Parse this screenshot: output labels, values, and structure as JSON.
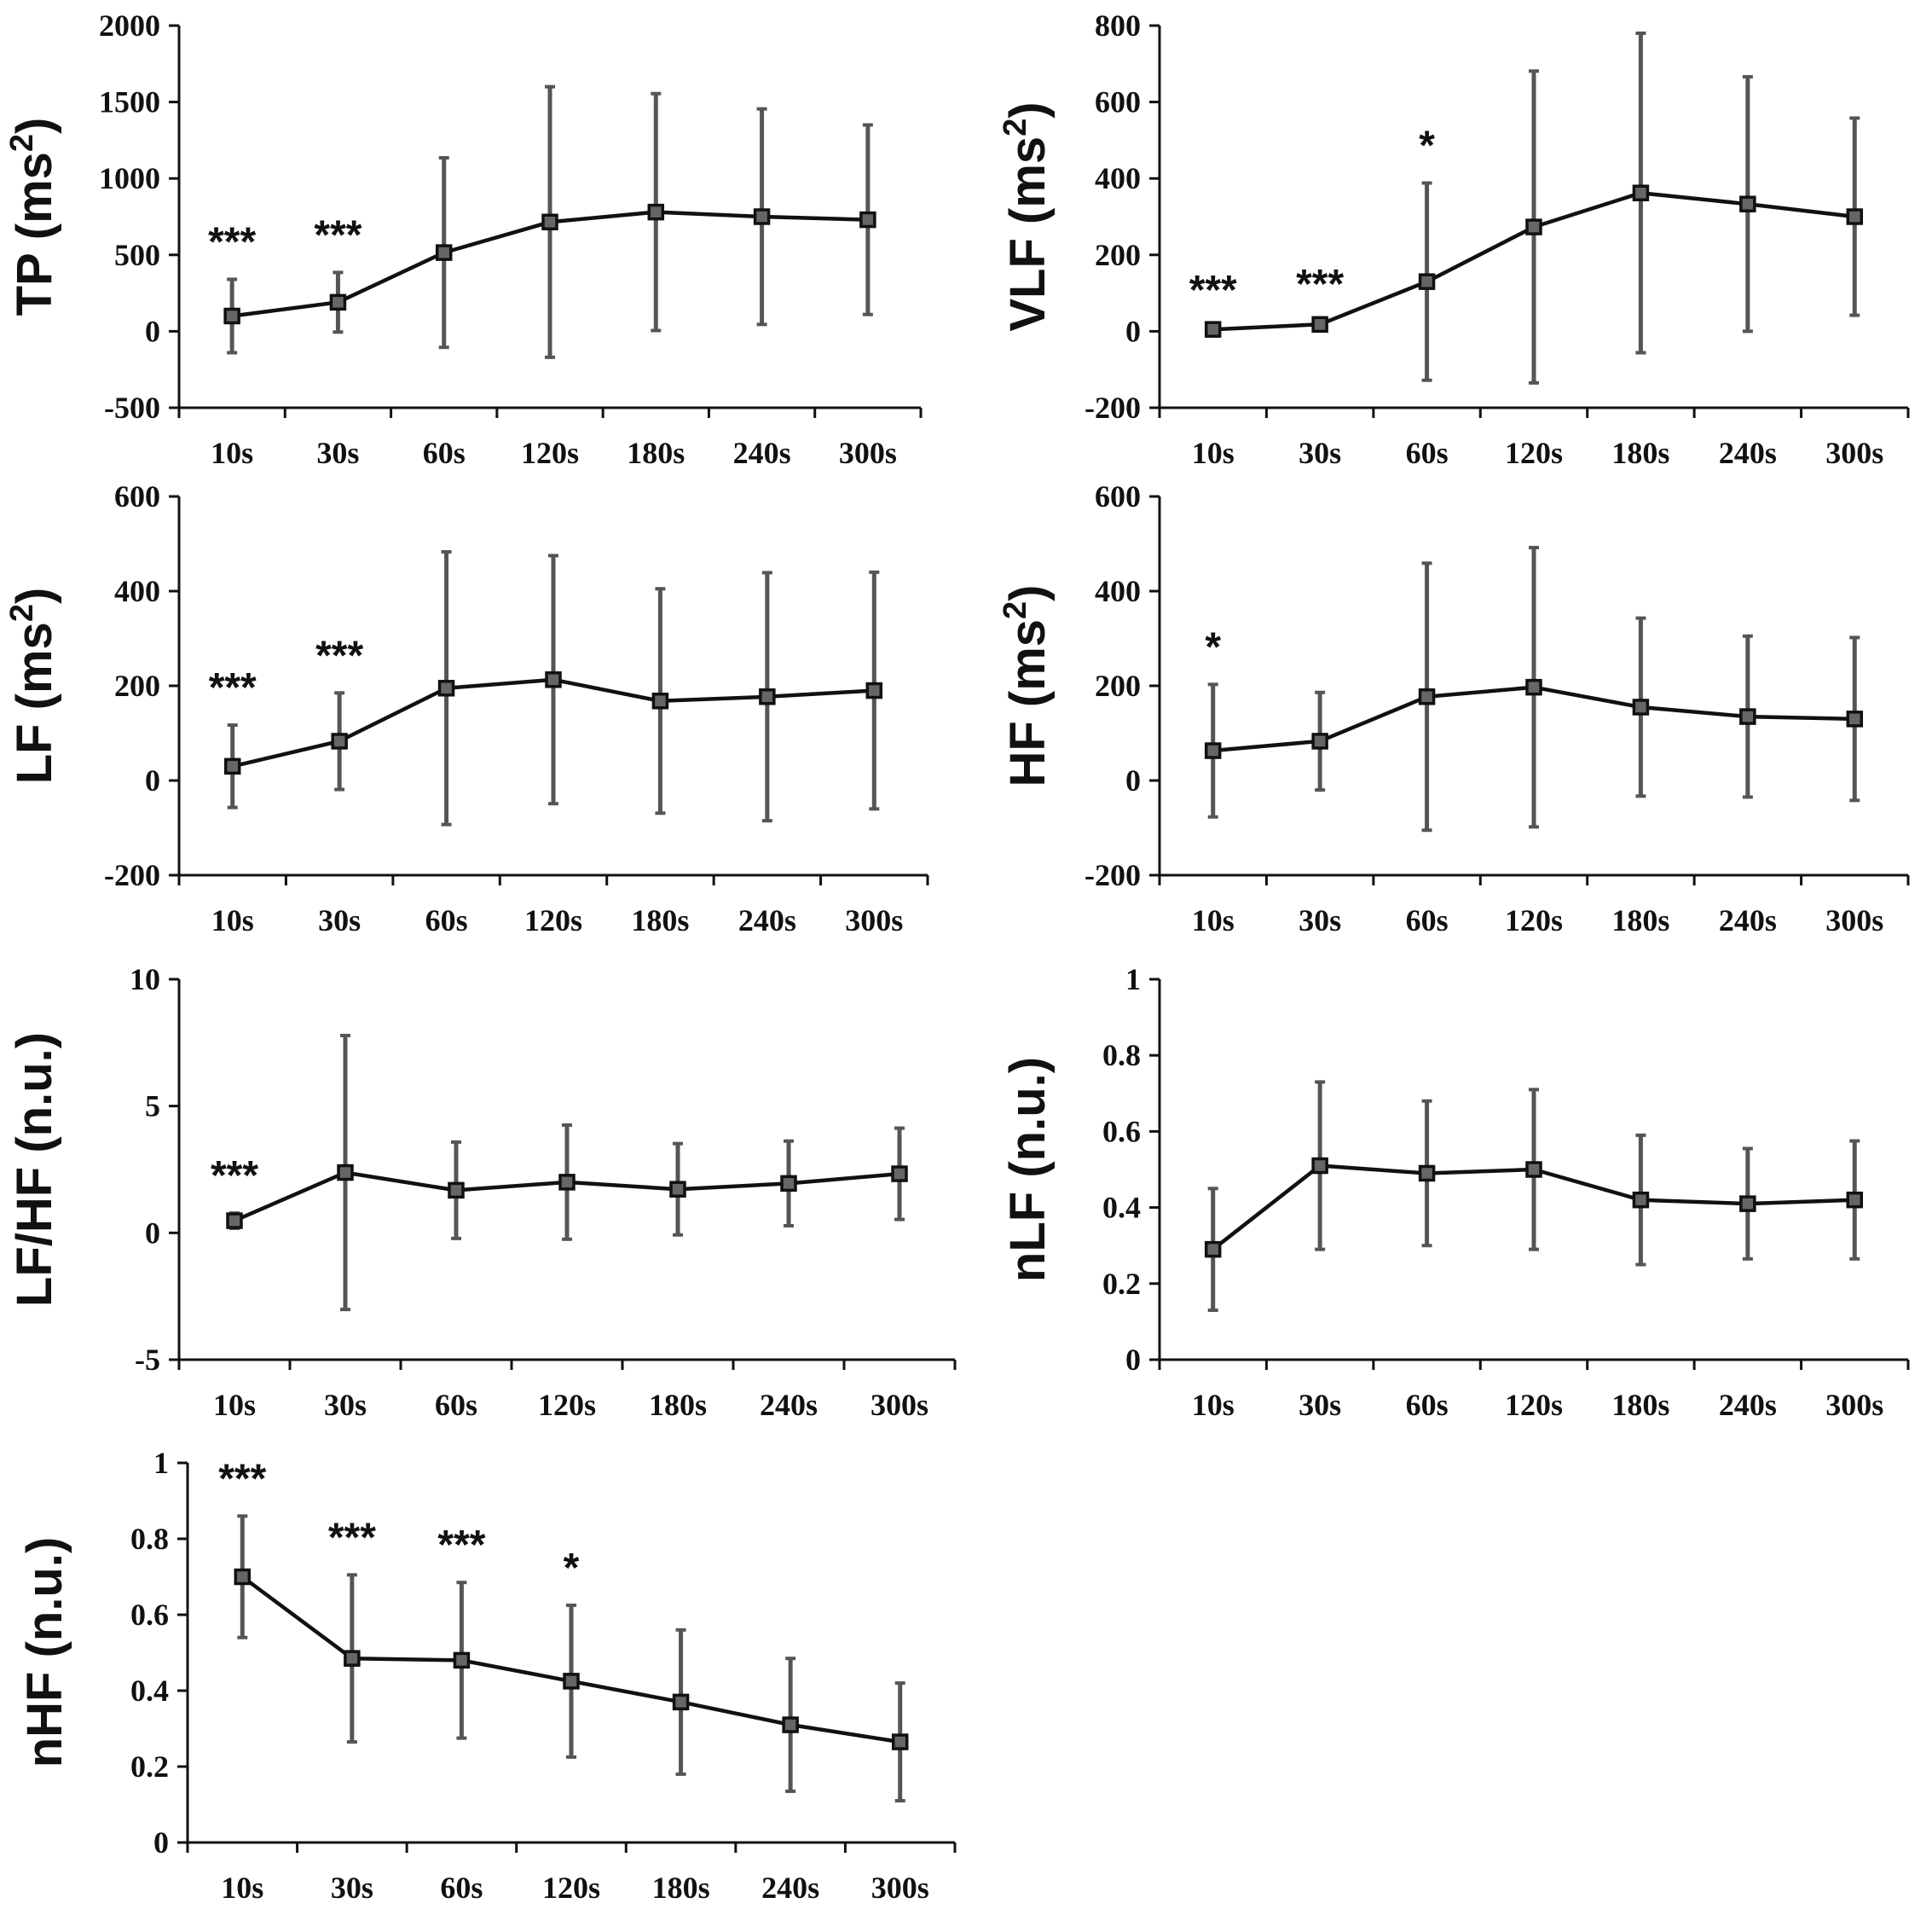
{
  "colors": {
    "line": "#111111",
    "errorbar": "#555555",
    "marker_fill": "#666666",
    "axis": "#111111"
  },
  "chart_data": [
    {
      "type": "line",
      "categories": [
        "10s",
        "30s",
        "60s",
        "120s",
        "180s",
        "240s",
        "300s"
      ],
      "ylabel": "TP (ms",
      "ylabel_sup": "2",
      "ylabel_close": ")",
      "ylim": [
        -500,
        2000
      ],
      "yticks": [
        -500,
        0,
        500,
        1000,
        1500,
        2000
      ],
      "ytick_labels": [
        "-500",
        "0",
        "500",
        "1000",
        "1500",
        "2000"
      ],
      "values": [
        100,
        190,
        515,
        715,
        780,
        750,
        730
      ],
      "errors": [
        240,
        195,
        620,
        885,
        775,
        705,
        620
      ],
      "significance": [
        "***",
        "***",
        "",
        "",
        "",
        "",
        ""
      ]
    },
    {
      "type": "line",
      "categories": [
        "10s",
        "30s",
        "60s",
        "120s",
        "180s",
        "240s",
        "300s"
      ],
      "ylabel": "VLF (ms",
      "ylabel_sup": "2",
      "ylabel_close": ")",
      "ylim": [
        -200,
        800
      ],
      "yticks": [
        -200,
        0,
        200,
        400,
        600,
        800
      ],
      "ytick_labels": [
        "-200",
        "0",
        "200",
        "400",
        "600",
        "800"
      ],
      "values": [
        5,
        18,
        130,
        273,
        362,
        333,
        300
      ],
      "errors": [
        5,
        8,
        258,
        408,
        418,
        333,
        258
      ],
      "significance": [
        "***",
        "***",
        "*",
        "",
        "",
        "",
        ""
      ]
    },
    {
      "type": "line",
      "categories": [
        "10s",
        "30s",
        "60s",
        "120s",
        "180s",
        "240s",
        "300s"
      ],
      "ylabel": "LF (ms",
      "ylabel_sup": "2",
      "ylabel_close": ")",
      "ylim": [
        -200,
        600
      ],
      "yticks": [
        -200,
        0,
        200,
        400,
        600
      ],
      "ytick_labels": [
        "-200",
        "0",
        "200",
        "400",
        "600"
      ],
      "values": [
        30,
        83,
        195,
        213,
        168,
        177,
        190
      ],
      "errors": [
        87,
        102,
        288,
        262,
        237,
        262,
        250
      ],
      "significance": [
        "***",
        "***",
        "",
        "",
        "",
        "",
        ""
      ]
    },
    {
      "type": "line",
      "categories": [
        "10s",
        "30s",
        "60s",
        "120s",
        "180s",
        "240s",
        "300s"
      ],
      "ylabel": "HF (ms",
      "ylabel_sup": "2",
      "ylabel_close": ")",
      "ylim": [
        -200,
        600
      ],
      "yticks": [
        -200,
        0,
        200,
        400,
        600
      ],
      "ytick_labels": [
        "-200",
        "0",
        "200",
        "400",
        "600"
      ],
      "values": [
        63,
        83,
        177,
        197,
        155,
        135,
        130
      ],
      "errors": [
        140,
        103,
        282,
        295,
        188,
        170,
        172
      ],
      "significance": [
        "*",
        "",
        "",
        "",
        "",
        "",
        ""
      ]
    },
    {
      "type": "line",
      "categories": [
        "10s",
        "30s",
        "60s",
        "120s",
        "180s",
        "240s",
        "300s"
      ],
      "ylabel": "LF/HF (n.u.)",
      "ylim": [
        -5,
        10
      ],
      "yticks": [
        -5,
        0,
        5,
        10
      ],
      "ytick_labels": [
        "-5",
        "0",
        "5",
        "10"
      ],
      "values": [
        0.48,
        2.38,
        1.68,
        2.0,
        1.72,
        1.95,
        2.33
      ],
      "errors": [
        0.3,
        5.4,
        1.9,
        2.25,
        1.8,
        1.67,
        1.8
      ],
      "significance": [
        "***",
        "",
        "",
        "",
        "",
        "",
        ""
      ]
    },
    {
      "type": "line",
      "categories": [
        "10s",
        "30s",
        "60s",
        "120s",
        "180s",
        "240s",
        "300s"
      ],
      "ylabel": "nLF (n.u.)",
      "ylim": [
        0,
        1
      ],
      "yticks": [
        0,
        0.2,
        0.4,
        0.6,
        0.8,
        1
      ],
      "ytick_labels": [
        "0",
        "0.2",
        "0.4",
        "0.6",
        "0.8",
        "1"
      ],
      "values": [
        0.29,
        0.51,
        0.49,
        0.5,
        0.42,
        0.41,
        0.42
      ],
      "errors": [
        0.16,
        0.22,
        0.19,
        0.21,
        0.17,
        0.145,
        0.155
      ],
      "significance": [
        "",
        "",
        "",
        "",
        "",
        "",
        ""
      ]
    },
    {
      "type": "line",
      "categories": [
        "10s",
        "30s",
        "60s",
        "120s",
        "180s",
        "240s",
        "300s"
      ],
      "ylabel": "nHF (n.u.)",
      "ylim": [
        0,
        1
      ],
      "yticks": [
        0,
        0.2,
        0.4,
        0.6,
        0.8,
        1
      ],
      "ytick_labels": [
        "0",
        "0.2",
        "0.4",
        "0.6",
        "0.8",
        "1"
      ],
      "values": [
        0.7,
        0.485,
        0.48,
        0.425,
        0.37,
        0.31,
        0.265
      ],
      "errors": [
        0.16,
        0.22,
        0.205,
        0.2,
        0.19,
        0.175,
        0.155
      ],
      "significance": [
        "***",
        "***",
        "***",
        "*",
        "",
        "",
        ""
      ]
    }
  ]
}
